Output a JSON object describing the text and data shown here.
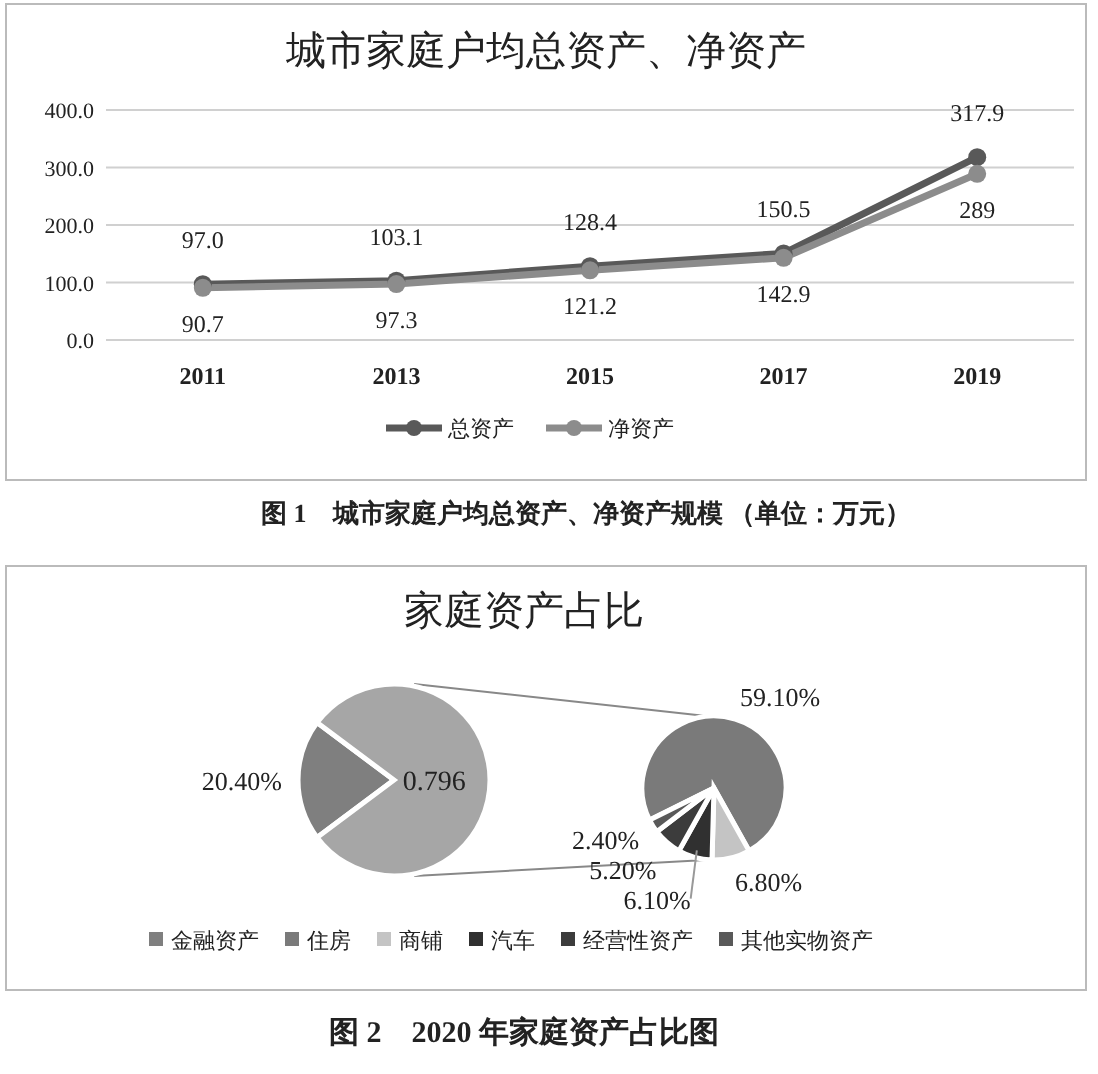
{
  "chart_data": [
    {
      "type": "line",
      "title": "城市家庭户均总资产、净资产",
      "categories": [
        "2011",
        "2013",
        "2015",
        "2017",
        "2019"
      ],
      "series": [
        {
          "name": "总资产",
          "color": "#595959",
          "values": [
            97.0,
            103.1,
            128.4,
            150.5,
            317.9
          ],
          "value_labels": [
            "97.0",
            "103.1",
            "128.4",
            "150.5",
            "317.9"
          ]
        },
        {
          "name": "净资产",
          "color": "#8c8c8c",
          "values": [
            90.7,
            97.3,
            121.2,
            142.9,
            289
          ],
          "value_labels": [
            "90.7",
            "97.3",
            "121.2",
            "142.9",
            "289"
          ]
        }
      ],
      "ylim": [
        0,
        400
      ],
      "yticks": [
        {
          "value": 0,
          "label": "0.0"
        },
        {
          "value": 100,
          "label": "100.0"
        },
        {
          "value": 200,
          "label": "200.0"
        },
        {
          "value": 300,
          "label": "300.0"
        },
        {
          "value": 400,
          "label": "400.0"
        }
      ],
      "grid": "y",
      "marker": "circle",
      "legend": "bottom",
      "annotations": [
        "图 1　城市家庭户均总资产、净资产规模 （单位：万元）"
      ]
    },
    {
      "type": "pie",
      "title": "家庭资产占比",
      "categories": [
        "金融资产",
        null
      ],
      "values": [
        0.204,
        0.796
      ],
      "colors": [
        "#7f7f7f",
        "#a6a6a6"
      ],
      "value_labels": [
        "20.40%",
        "0.796"
      ],
      "legend": "bottom",
      "annotations": [
        "图 2　2020 年家庭资产占比图"
      ]
    },
    {
      "type": "pie",
      "categories": [
        "住房",
        "商铺",
        "汽车",
        "经营性资产",
        "其他实物资产"
      ],
      "values": [
        59.1,
        6.8,
        6.1,
        5.2,
        2.4
      ],
      "colors": [
        "#7a7a7a",
        "#c4c4c4",
        "#303030",
        "#3c3c3c",
        "#595959"
      ],
      "value_labels": [
        "59.10%",
        "6.80%",
        "6.10%",
        "5.20%",
        "2.40%"
      ],
      "legend": "bottom"
    }
  ]
}
